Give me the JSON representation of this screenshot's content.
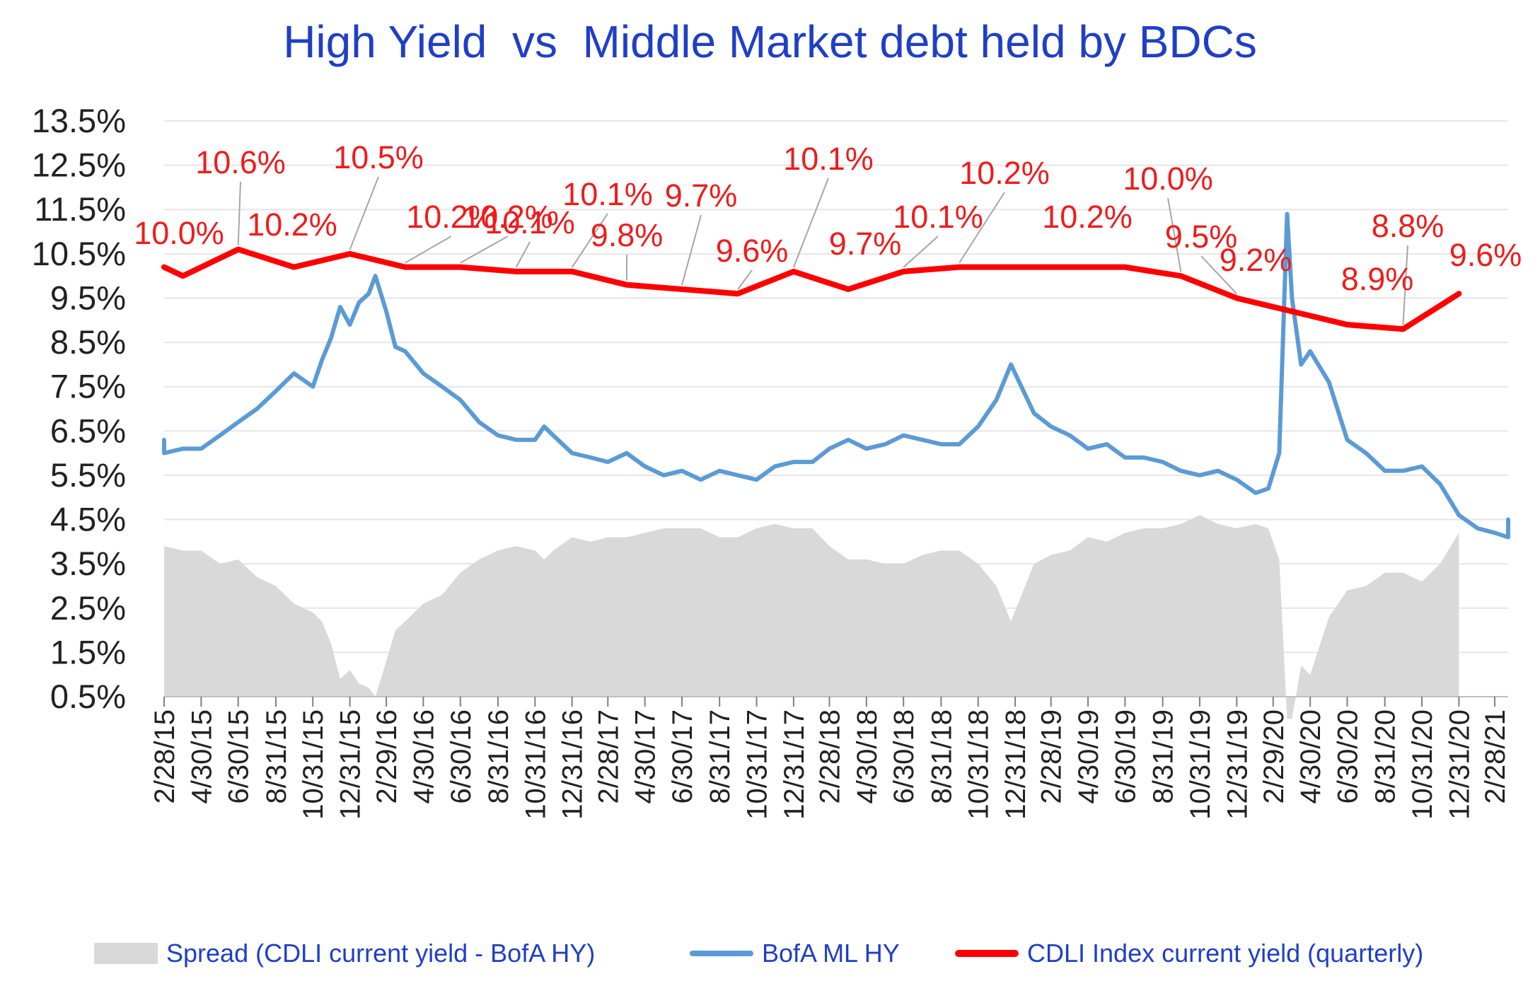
{
  "chart_data": {
    "type": "line",
    "title": "High Yield  vs  Middle Market debt held by BDCs",
    "xlabel": "",
    "ylabel": "",
    "ylim": [
      0.5,
      13.5
    ],
    "y_tick_labels": [
      "13.5%",
      "12.5%",
      "11.5%",
      "10.5%",
      "9.5%",
      "8.5%",
      "7.5%",
      "6.5%",
      "5.5%",
      "4.5%",
      "3.5%",
      "2.5%",
      "1.5%",
      "0.5%"
    ],
    "x_tick_labels": [
      "2/28/15",
      "4/30/15",
      "6/30/15",
      "8/31/15",
      "10/31/15",
      "12/31/15",
      "2/29/16",
      "4/30/16",
      "6/30/16",
      "8/31/16",
      "10/31/16",
      "12/31/16",
      "2/28/17",
      "4/30/17",
      "6/30/17",
      "8/31/17",
      "10/31/17",
      "12/31/17",
      "2/28/18",
      "4/30/18",
      "6/30/18",
      "8/31/18",
      "10/31/18",
      "12/31/18",
      "2/28/19",
      "4/30/19",
      "6/30/19",
      "8/31/19",
      "10/31/19",
      "12/31/19",
      "2/29/20",
      "4/30/20",
      "6/30/20",
      "8/31/20",
      "10/31/20",
      "12/31/20",
      "2/28/21"
    ],
    "grid": true,
    "legend_position": "bottom",
    "legend": [
      "Spread (CDLI current yield - BofA HY)",
      "BofA ML HY",
      "CDLI Index current yield (quarterly)"
    ],
    "series": [
      {
        "name": "CDLI Index current yield (quarterly)",
        "kind": "line",
        "color": "#ff0000",
        "x": [
          "12/31/14",
          "3/31/15",
          "6/30/15",
          "9/30/15",
          "12/31/15",
          "3/31/16",
          "6/30/16",
          "9/30/16",
          "12/31/16",
          "3/31/17",
          "6/30/17",
          "9/30/17",
          "12/31/17",
          "3/31/18",
          "6/30/18",
          "9/30/18",
          "12/31/18",
          "3/31/19",
          "6/30/19",
          "9/30/19",
          "12/31/19",
          "3/31/20",
          "6/30/20",
          "9/30/20",
          "12/31/20"
        ],
        "values": [
          10.2,
          10.0,
          10.6,
          10.2,
          10.5,
          10.2,
          10.2,
          10.1,
          10.1,
          9.8,
          9.7,
          9.6,
          10.1,
          9.7,
          10.1,
          10.2,
          10.2,
          10.2,
          10.2,
          10.0,
          9.5,
          9.2,
          8.9,
          8.8,
          9.6
        ],
        "point_labels": [
          {
            "x": "3/31/15",
            "text": "10.0%"
          },
          {
            "x": "6/30/15",
            "text": "10.6%"
          },
          {
            "x": "9/30/15",
            "text": "10.2%"
          },
          {
            "x": "12/31/15",
            "text": "10.5%"
          },
          {
            "x": "3/31/16",
            "text": "10.2%"
          },
          {
            "x": "6/30/16",
            "text": "10.2%"
          },
          {
            "x": "9/30/16",
            "text": "10.1%"
          },
          {
            "x": "12/31/16",
            "text": "10.1%"
          },
          {
            "x": "3/31/17",
            "text": "9.8%"
          },
          {
            "x": "6/30/17",
            "text": "9.7%"
          },
          {
            "x": "9/30/17",
            "text": "9.6%"
          },
          {
            "x": "12/31/17",
            "text": "10.1%"
          },
          {
            "x": "3/31/18",
            "text": "9.7%"
          },
          {
            "x": "6/30/18",
            "text": "10.1%"
          },
          {
            "x": "9/30/18",
            "text": "10.2%"
          },
          {
            "x": "3/31/19",
            "text": "10.2%"
          },
          {
            "x": "9/30/19",
            "text": "10.0%"
          },
          {
            "x": "12/31/19",
            "text": "9.5%"
          },
          {
            "x": "3/31/20",
            "text": "9.2%"
          },
          {
            "x": "6/30/20",
            "text": "8.9%"
          },
          {
            "x": "9/30/20",
            "text": "8.8%"
          },
          {
            "x": "12/31/20",
            "text": "9.6%"
          }
        ]
      },
      {
        "name": "BofA ML HY",
        "kind": "line",
        "color": "#5b9bd5",
        "x": [
          "12/31/14",
          "1/31/15",
          "2/28/15",
          "3/31/15",
          "4/30/15",
          "5/31/15",
          "6/30/15",
          "7/31/15",
          "8/31/15",
          "9/30/15",
          "10/31/15",
          "11/15/15",
          "11/30/15",
          "12/15/15",
          "12/31/15",
          "1/15/16",
          "1/31/16",
          "2/11/16",
          "2/29/16",
          "3/15/16",
          "3/31/16",
          "4/30/16",
          "5/31/16",
          "6/30/16",
          "7/31/16",
          "8/31/16",
          "9/30/16",
          "10/31/16",
          "11/15/16",
          "11/30/16",
          "12/31/16",
          "1/31/17",
          "2/28/17",
          "3/31/17",
          "4/30/17",
          "5/31/17",
          "6/30/17",
          "7/31/17",
          "8/31/17",
          "9/30/17",
          "10/31/17",
          "11/30/17",
          "12/31/17",
          "1/31/18",
          "2/28/18",
          "3/31/18",
          "4/30/18",
          "5/31/18",
          "6/30/18",
          "7/31/18",
          "8/31/18",
          "9/30/18",
          "10/31/18",
          "11/30/18",
          "12/24/18",
          "1/31/19",
          "2/28/19",
          "3/31/19",
          "4/30/19",
          "5/31/19",
          "6/30/19",
          "7/31/19",
          "8/31/19",
          "9/30/19",
          "10/31/19",
          "11/30/19",
          "12/31/19",
          "1/31/20",
          "2/21/20",
          "3/10/20",
          "3/23/20",
          "3/31/20",
          "4/15/20",
          "4/30/20",
          "5/31/20",
          "6/30/20",
          "7/31/20",
          "8/31/20",
          "9/30/20",
          "10/31/20",
          "11/30/20",
          "12/31/20",
          "1/31/21",
          "2/28/21",
          "3/31/21",
          "4/15/21"
        ],
        "values": [
          6.1,
          6.3,
          6.0,
          6.1,
          6.1,
          6.4,
          6.7,
          7.0,
          7.4,
          7.8,
          7.5,
          8.1,
          8.6,
          9.3,
          8.9,
          9.4,
          9.6,
          10.0,
          9.2,
          8.4,
          8.3,
          7.8,
          7.5,
          7.2,
          6.7,
          6.4,
          6.3,
          6.3,
          6.6,
          6.4,
          6.0,
          5.9,
          5.8,
          6.0,
          5.7,
          5.5,
          5.6,
          5.4,
          5.6,
          5.5,
          5.4,
          5.7,
          5.8,
          5.8,
          6.1,
          6.3,
          6.1,
          6.2,
          6.4,
          6.3,
          6.2,
          6.2,
          6.6,
          7.2,
          8.0,
          6.9,
          6.6,
          6.4,
          6.1,
          6.2,
          5.9,
          5.9,
          5.8,
          5.6,
          5.5,
          5.6,
          5.4,
          5.1,
          5.2,
          6.0,
          11.4,
          9.5,
          8.0,
          8.3,
          7.6,
          6.3,
          6.0,
          5.6,
          5.6,
          5.7,
          5.3,
          4.6,
          4.3,
          4.2,
          4.1,
          4.5
        ]
      },
      {
        "name": "Spread (CDLI current yield - BofA HY)",
        "kind": "area",
        "color": "#d9d9d9",
        "x": [
          "12/31/14",
          "1/31/15",
          "2/28/15",
          "3/31/15",
          "4/30/15",
          "5/31/15",
          "6/30/15",
          "7/31/15",
          "8/31/15",
          "9/30/15",
          "10/31/15",
          "11/15/15",
          "11/30/15",
          "12/15/15",
          "12/31/15",
          "1/15/16",
          "1/31/16",
          "2/11/16",
          "2/29/16",
          "3/15/16",
          "3/31/16",
          "4/30/16",
          "5/31/16",
          "6/30/16",
          "7/31/16",
          "8/31/16",
          "9/30/16",
          "10/31/16",
          "11/15/16",
          "11/30/16",
          "12/31/16",
          "1/31/17",
          "2/28/17",
          "3/31/17",
          "4/30/17",
          "5/31/17",
          "6/30/17",
          "7/31/17",
          "8/31/17",
          "9/30/17",
          "10/31/17",
          "11/30/17",
          "12/31/17",
          "1/31/18",
          "2/28/18",
          "3/31/18",
          "4/30/18",
          "5/31/18",
          "6/30/18",
          "7/31/18",
          "8/31/18",
          "9/30/18",
          "10/31/18",
          "11/30/18",
          "12/24/18",
          "1/31/19",
          "2/28/19",
          "3/31/19",
          "4/30/19",
          "5/31/19",
          "6/30/19",
          "7/31/19",
          "8/31/19",
          "9/30/19",
          "10/31/19",
          "11/30/19",
          "12/31/19",
          "1/31/20",
          "2/21/20",
          "3/10/20",
          "3/23/20",
          "3/31/20",
          "4/15/20",
          "4/30/20",
          "5/31/20",
          "6/30/20",
          "7/31/20",
          "8/31/20",
          "9/30/20",
          "10/31/20",
          "11/30/20",
          "12/31/20"
        ],
        "values": [
          4.5,
          4.1,
          3.9,
          3.8,
          3.8,
          3.5,
          3.6,
          3.2,
          3.0,
          2.6,
          2.4,
          2.2,
          1.7,
          0.9,
          1.1,
          0.8,
          0.7,
          0.5,
          1.3,
          2.0,
          2.2,
          2.6,
          2.8,
          3.3,
          3.6,
          3.8,
          3.9,
          3.8,
          3.6,
          3.8,
          4.1,
          4.0,
          4.1,
          4.1,
          4.2,
          4.3,
          4.3,
          4.3,
          4.1,
          4.1,
          4.3,
          4.4,
          4.3,
          4.3,
          3.9,
          3.6,
          3.6,
          3.5,
          3.5,
          3.7,
          3.8,
          3.8,
          3.5,
          3.0,
          2.2,
          3.5,
          3.7,
          3.8,
          4.1,
          4.0,
          4.2,
          4.3,
          4.3,
          4.4,
          4.6,
          4.4,
          4.3,
          4.4,
          4.3,
          3.6,
          0.0,
          0.0,
          1.2,
          1.0,
          2.3,
          2.9,
          3.0,
          3.3,
          3.3,
          3.1,
          3.5,
          4.2
        ]
      }
    ]
  },
  "legend": {
    "spread": "Spread (CDLI current yield - BofA HY)",
    "hy": "BofA ML HY",
    "cdli": "CDLI Index current yield (quarterly)"
  },
  "colors": {
    "title": "#1f3fc6",
    "cdli": "#ff0000",
    "hy": "#5b9bd5",
    "spread": "#d9d9d9",
    "grid": "#e6e6e6",
    "label": "#ee1c1c",
    "leader": "#a6a6a6"
  }
}
